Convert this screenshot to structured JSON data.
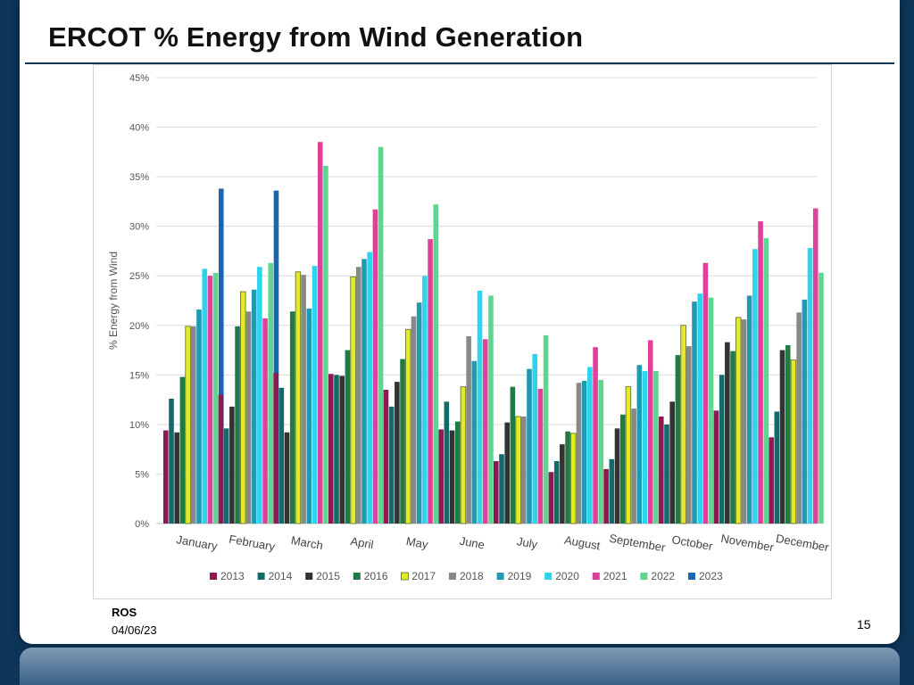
{
  "slide": {
    "title": "ERCOT % Energy from Wind Generation",
    "footer_org": "ROS",
    "footer_date": "04/06/23",
    "page_number": "15"
  },
  "chart_data": {
    "type": "bar",
    "title": "",
    "xlabel": "",
    "ylabel": "% Energy from Wind",
    "ylim": [
      0,
      45
    ],
    "yticks": [
      "0%",
      "5%",
      "10%",
      "15%",
      "20%",
      "25%",
      "30%",
      "35%",
      "40%",
      "45%"
    ],
    "grid": true,
    "legend_position": "bottom",
    "categories": [
      "January",
      "February",
      "March",
      "April",
      "May",
      "June",
      "July",
      "August",
      "September",
      "October",
      "November",
      "December"
    ],
    "series": [
      {
        "name": "2013",
        "color": "#8b1a52",
        "values": [
          9.4,
          13.0,
          15.2,
          15.1,
          13.5,
          9.5,
          6.3,
          5.2,
          5.5,
          10.8,
          11.4,
          8.7
        ]
      },
      {
        "name": "2014",
        "color": "#146a6b",
        "values": [
          12.6,
          9.6,
          13.7,
          15.0,
          11.8,
          12.3,
          7.0,
          6.3,
          6.5,
          10.0,
          15.0,
          11.3
        ]
      },
      {
        "name": "2015",
        "color": "#333333",
        "values": [
          9.2,
          11.8,
          9.2,
          14.9,
          14.3,
          9.4,
          10.2,
          8.0,
          9.6,
          12.3,
          18.3,
          17.5
        ]
      },
      {
        "name": "2016",
        "color": "#217a45",
        "values": [
          14.8,
          19.9,
          21.4,
          17.5,
          16.6,
          10.3,
          13.8,
          9.3,
          11.0,
          17.0,
          17.4,
          18.0
        ]
      },
      {
        "name": "2017",
        "color": "#e4ea2a",
        "values": [
          19.9,
          23.4,
          25.4,
          24.9,
          19.6,
          13.8,
          10.8,
          9.1,
          13.8,
          20.0,
          20.8,
          16.5
        ]
      },
      {
        "name": "2018",
        "color": "#888888",
        "values": [
          19.9,
          21.4,
          25.1,
          25.9,
          20.9,
          18.9,
          10.8,
          14.2,
          11.6,
          17.9,
          20.6,
          21.3
        ]
      },
      {
        "name": "2019",
        "color": "#1d9bb3",
        "values": [
          21.6,
          23.6,
          21.7,
          26.7,
          22.3,
          16.4,
          15.6,
          14.4,
          16.0,
          22.4,
          23.0,
          22.6
        ]
      },
      {
        "name": "2020",
        "color": "#2dd4ee",
        "values": [
          25.7,
          25.9,
          26.0,
          27.4,
          25.0,
          23.5,
          17.1,
          15.8,
          15.4,
          23.2,
          27.7,
          27.8
        ]
      },
      {
        "name": "2021",
        "color": "#e0409a",
        "values": [
          25.0,
          20.7,
          38.5,
          31.7,
          28.7,
          18.6,
          13.6,
          17.8,
          18.5,
          26.3,
          30.5,
          31.8
        ]
      },
      {
        "name": "2022",
        "color": "#5ed68f",
        "values": [
          25.3,
          26.3,
          36.1,
          38.0,
          32.2,
          23.0,
          19.0,
          14.5,
          15.4,
          22.8,
          28.8,
          25.3
        ]
      },
      {
        "name": "2023",
        "color": "#1a66b0",
        "values": [
          33.8,
          33.6,
          null,
          null,
          null,
          null,
          null,
          null,
          null,
          null,
          null,
          null
        ]
      }
    ]
  }
}
